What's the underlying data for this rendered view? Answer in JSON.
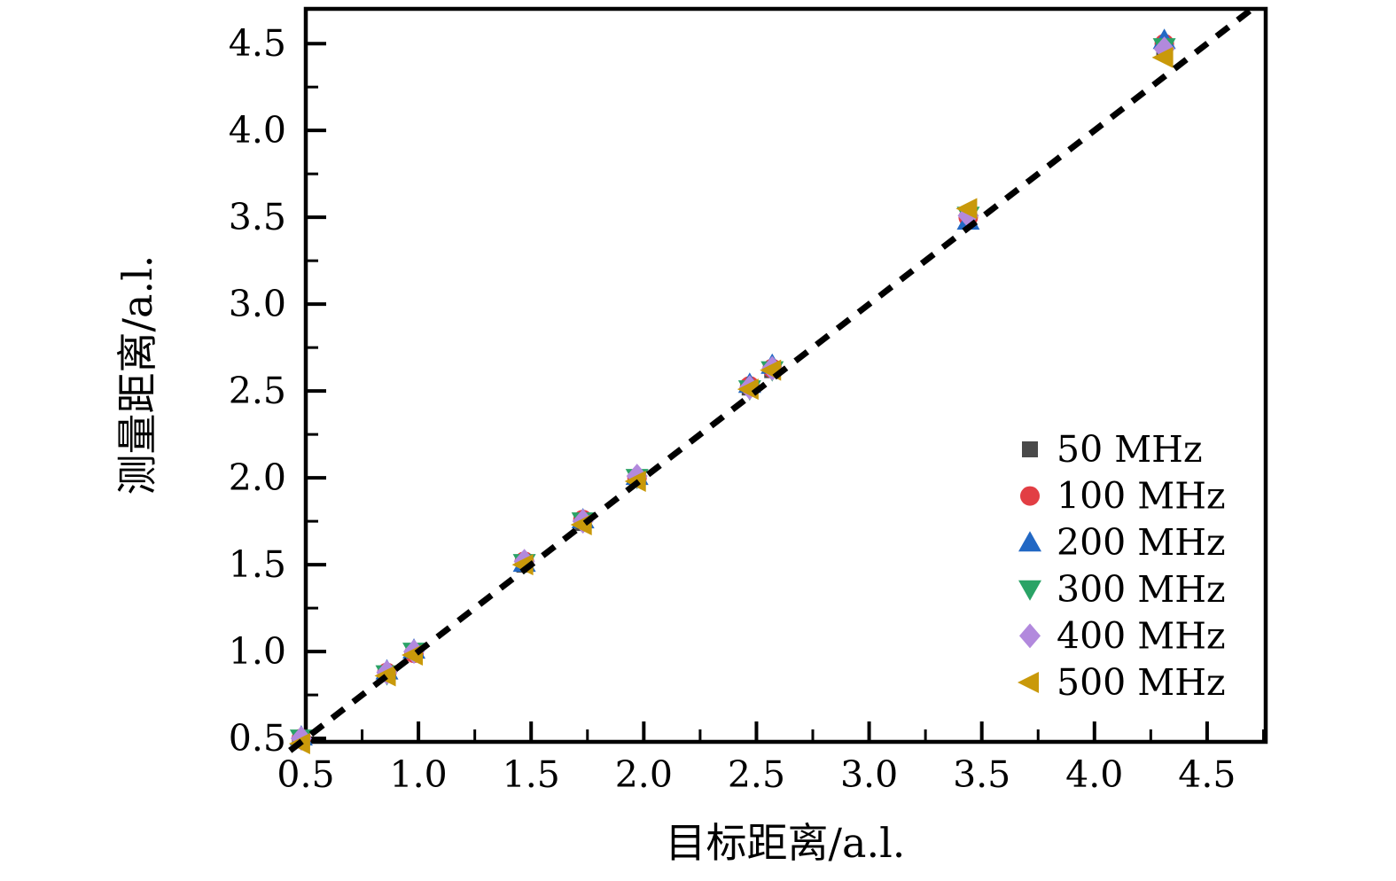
{
  "figure": {
    "background_color": "#ffffff",
    "axis_color": "#000000",
    "tick_label_color": "#000000"
  },
  "chart_data": {
    "type": "scatter",
    "title": "",
    "xlabel": "目标距离/a.l.",
    "ylabel": "测量距离/a.l.",
    "xlim": [
      0.5,
      4.76
    ],
    "ylim": [
      0.48,
      4.7
    ],
    "xticks": [
      0.5,
      1.0,
      1.5,
      2.0,
      2.5,
      3.0,
      3.5,
      4.0,
      4.5
    ],
    "yticks": [
      0.5,
      1.0,
      1.5,
      2.0,
      2.5,
      3.0,
      3.5,
      4.0,
      4.5
    ],
    "minor_tick_offset": 0.25,
    "grid": false,
    "reference_line": {
      "equation": "y = x",
      "style": "dashed",
      "color": "#000000",
      "from": 0.43,
      "to": 4.7
    },
    "x": [
      0.48,
      0.86,
      0.98,
      1.47,
      1.73,
      1.97,
      2.47,
      2.57,
      3.44,
      4.31
    ],
    "series": [
      {
        "name": "50 MHz",
        "marker": "square",
        "color": "#4a4a4a",
        "y": [
          0.5,
          0.87,
          0.99,
          1.5,
          1.74,
          1.99,
          2.52,
          2.62,
          3.49,
          4.47
        ]
      },
      {
        "name": "100 MHz",
        "marker": "circle",
        "color": "#e23e44",
        "y": [
          0.5,
          0.88,
          0.99,
          1.52,
          1.76,
          2.0,
          2.53,
          2.63,
          3.5,
          4.5
        ]
      },
      {
        "name": "200 MHz",
        "marker": "triangle-up",
        "color": "#2268c4",
        "y": [
          0.51,
          0.89,
          1.01,
          1.51,
          1.76,
          2.01,
          2.54,
          2.65,
          3.48,
          4.52
        ]
      },
      {
        "name": "300 MHz",
        "marker": "triangle-down",
        "color": "#2aa366",
        "y": [
          0.5,
          0.87,
          1.0,
          1.51,
          1.75,
          2.0,
          2.51,
          2.62,
          3.51,
          4.48
        ]
      },
      {
        "name": "400 MHz",
        "marker": "diamond",
        "color": "#b289dd",
        "y": [
          0.5,
          0.88,
          1.0,
          1.52,
          1.75,
          2.01,
          2.52,
          2.63,
          3.51,
          4.47
        ]
      },
      {
        "name": "500 MHz",
        "marker": "triangle-left",
        "color": "#c9990a",
        "y": [
          0.47,
          0.86,
          0.98,
          1.5,
          1.73,
          1.98,
          2.51,
          2.62,
          3.55,
          4.42
        ]
      }
    ],
    "legend": {
      "position": "inside-lower-right",
      "frame": false
    }
  }
}
